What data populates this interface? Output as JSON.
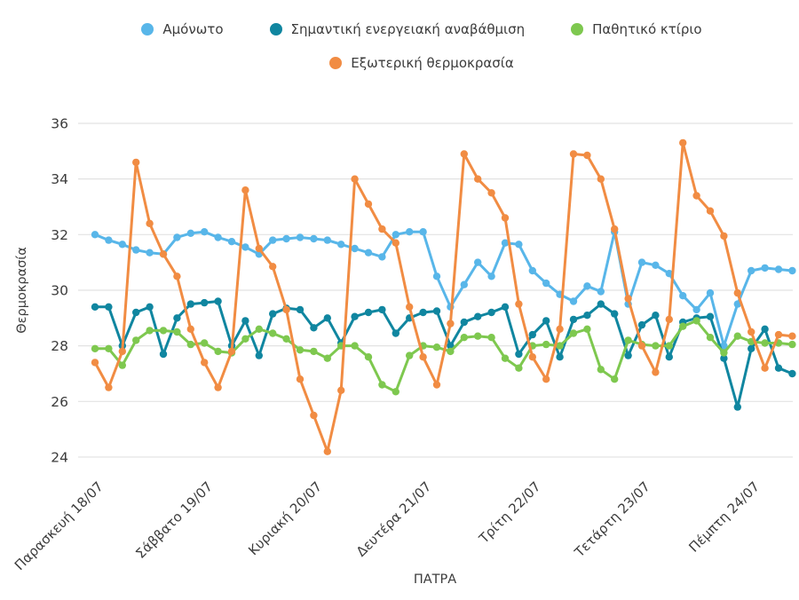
{
  "styles": {
    "background": "#ffffff",
    "text_color": "#3c3c3c",
    "grid_color": "#e2e2e2"
  },
  "legend": {
    "items": [
      {
        "label": "Αμόνωτο",
        "color": "#58B6E9"
      },
      {
        "label": "Σημαντική ενεργειακή αναβάθμιση",
        "color": "#1086A0"
      },
      {
        "label": "Παθητικό κτίριο",
        "color": "#7EC84F"
      },
      {
        "label": "Εξωτερική θερμοκρασία",
        "color": "#F18C43"
      }
    ]
  },
  "axes": {
    "y_title": "Θερμοκρασία",
    "x_title": "ΠΑΤΡΑ"
  },
  "chart_data": {
    "type": "line",
    "title": "",
    "xlabel": "ΠΑΤΡΑ",
    "ylabel": "Θερμοκρασία",
    "ylim": [
      24,
      36
    ],
    "y_ticks": [
      36,
      34,
      32,
      30,
      28,
      26,
      24
    ],
    "grid": "horizontal-only",
    "legend_position": "top-center",
    "x_type": "time-3h-intervals",
    "points_per_day": 8,
    "tick_indices": [
      0,
      8,
      16,
      24,
      32,
      40,
      48
    ],
    "tick_labels": [
      "Παρασκευή 18/07",
      "Σάββατο 19/07",
      "Κυριακή 20/07",
      "Δευτέρα 21/07",
      "Τρίτη 22/07",
      "Τετάρτη 23/07",
      "Πέμπτη 24/07"
    ],
    "series": [
      {
        "name": "Αμόνωτο",
        "color": "#58B6E9",
        "values": [
          32.0,
          31.8,
          31.65,
          31.45,
          31.35,
          31.3,
          31.9,
          32.05,
          32.1,
          31.9,
          31.75,
          31.55,
          31.3,
          31.8,
          31.85,
          31.9,
          31.85,
          31.8,
          31.65,
          31.5,
          31.35,
          31.2,
          32.0,
          32.1,
          32.1,
          30.5,
          29.4,
          30.2,
          31.0,
          30.5,
          31.7,
          31.65,
          30.7,
          30.25,
          29.85,
          29.6,
          30.15,
          29.95,
          32.1,
          29.5,
          31.0,
          30.9,
          30.6,
          29.8,
          29.3,
          29.9,
          28.0,
          29.5,
          30.7,
          30.8,
          30.75,
          30.7
        ]
      },
      {
        "name": "Σημαντική ενεργειακή αναβάθμιση",
        "color": "#1086A0",
        "values": [
          29.4,
          29.4,
          28.0,
          29.2,
          29.4,
          27.7,
          29.0,
          29.5,
          29.55,
          29.6,
          28.0,
          28.9,
          27.65,
          29.15,
          29.35,
          29.3,
          28.65,
          29.0,
          28.1,
          29.05,
          29.2,
          29.3,
          28.45,
          29.0,
          29.2,
          29.25,
          28.0,
          28.85,
          29.05,
          29.2,
          29.4,
          27.7,
          28.4,
          28.9,
          27.6,
          28.95,
          29.1,
          29.5,
          29.15,
          27.65,
          28.75,
          29.1,
          27.6,
          28.85,
          29.0,
          29.05,
          27.55,
          25.8,
          27.9,
          28.6,
          27.2,
          27.0
        ]
      },
      {
        "name": "Παθητικό κτίριο",
        "color": "#7EC84F",
        "values": [
          27.9,
          27.9,
          27.3,
          28.2,
          28.55,
          28.55,
          28.5,
          28.05,
          28.1,
          27.8,
          27.75,
          28.25,
          28.6,
          28.45,
          28.25,
          27.85,
          27.8,
          27.55,
          28.0,
          28.0,
          27.6,
          26.6,
          26.35,
          27.65,
          28.0,
          27.95,
          27.8,
          28.3,
          28.35,
          28.3,
          27.55,
          27.2,
          28.0,
          28.05,
          28.0,
          28.45,
          28.6,
          27.15,
          26.8,
          28.2,
          28.05,
          28.0,
          28.0,
          28.7,
          28.9,
          28.3,
          27.75,
          28.35,
          28.15,
          28.1,
          28.1,
          28.05
        ]
      },
      {
        "name": "Εξωτερική θερμοκρασία",
        "color": "#F18C43",
        "values": [
          27.4,
          26.5,
          27.8,
          34.6,
          32.4,
          31.3,
          30.5,
          28.6,
          27.4,
          26.5,
          27.8,
          33.6,
          31.5,
          30.85,
          29.3,
          26.8,
          25.5,
          24.2,
          26.4,
          34.0,
          33.1,
          32.2,
          31.7,
          29.4,
          27.6,
          26.6,
          28.8,
          34.9,
          34.0,
          33.5,
          32.6,
          29.5,
          27.6,
          26.8,
          28.6,
          34.9,
          34.85,
          34.0,
          32.2,
          29.7,
          28.0,
          27.05,
          28.95,
          35.3,
          33.4,
          32.85,
          31.95,
          29.9,
          28.5,
          27.2,
          28.4,
          28.35
        ]
      }
    ]
  }
}
